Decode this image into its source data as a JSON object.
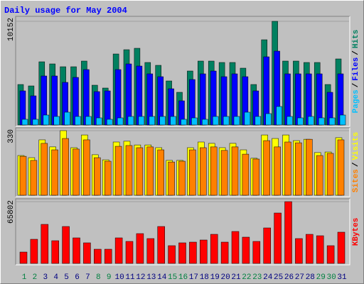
{
  "title": "Daily usage for May 2004",
  "legend_separator": "/",
  "chart_data": [
    {
      "type": "bar",
      "series": [
        {
          "name": "Hits",
          "color": "#008060",
          "values": [
            3963,
            3824,
            6188,
            5980,
            5702,
            5702,
            6258,
            3894,
            3616,
            6953,
            7371,
            7510,
            6119,
            5841,
            4311,
            3199,
            5285,
            6258,
            6258,
            6119,
            6119,
            5563,
            3963,
            8344,
            10152,
            6258,
            6258,
            6119,
            6119,
            3963,
            6467
          ]
        },
        {
          "name": "Files",
          "color": "#0000ff",
          "values": [
            3338,
            2851,
            4798,
            4798,
            4172,
            4659,
            5424,
            3268,
            3338,
            5424,
            5980,
            5771,
            5007,
            4728,
            3546,
            2364,
            4450,
            5007,
            5285,
            4728,
            5007,
            4728,
            3338,
            6675,
            7232,
            5007,
            5007,
            5007,
            5007,
            3199,
            5007
          ]
        },
        {
          "name": "Pages",
          "color": "#00c0ff",
          "values": [
            556,
            556,
            973,
            834,
            1251,
            834,
            834,
            695,
            556,
            695,
            834,
            834,
            834,
            834,
            834,
            556,
            695,
            556,
            834,
            834,
            834,
            1251,
            834,
            1112,
            1808,
            834,
            695,
            834,
            695,
            695,
            973
          ]
        }
      ],
      "ylim": [
        0,
        10152
      ],
      "yticks": [
        10152
      ]
    },
    {
      "type": "bar",
      "series": [
        {
          "name": "Visits",
          "color": "#ffff00",
          "values": [
            203,
            192,
            283,
            247,
            330,
            243,
            308,
            207,
            181,
            272,
            276,
            257,
            257,
            243,
            178,
            178,
            243,
            272,
            265,
            243,
            265,
            232,
            189,
            308,
            290,
            308,
            279,
            286,
            218,
            221,
            294
          ]
        },
        {
          "name": "Sites",
          "color": "#ff8000",
          "values": [
            199,
            178,
            265,
            232,
            290,
            236,
            283,
            192,
            174,
            250,
            254,
            243,
            247,
            232,
            170,
            174,
            232,
            243,
            247,
            229,
            247,
            210,
            185,
            279,
            247,
            272,
            268,
            286,
            203,
            214,
            283
          ]
        }
      ],
      "ylim": [
        0,
        330
      ],
      "yticks": [
        330
      ]
    },
    {
      "type": "bar",
      "series": [
        {
          "name": "KBytes",
          "color": "#ff0000",
          "values": [
            12101,
            25716,
            41600,
            24203,
            39331,
            27229,
            21934,
            15127,
            15127,
            27229,
            23446,
            31766,
            26473,
            39331,
            18909,
            21934,
            22690,
            24959,
            31010,
            22690,
            34036,
            27985,
            23446,
            37818,
            53701,
            65802,
            26473,
            31010,
            29498,
            18909,
            33280
          ]
        }
      ],
      "ylim": [
        0,
        65802
      ],
      "yticks": [
        65802
      ],
      "categories": [
        "1",
        "2",
        "3",
        "4",
        "5",
        "6",
        "7",
        "8",
        "9",
        "10",
        "11",
        "12",
        "13",
        "14",
        "15",
        "16",
        "17",
        "18",
        "19",
        "20",
        "21",
        "22",
        "23",
        "24",
        "25",
        "26",
        "27",
        "28",
        "29",
        "30",
        "31"
      ],
      "category_colors": [
        "#008040",
        "#008040",
        "#000080",
        "#000080",
        "#000080",
        "#000080",
        "#000080",
        "#008040",
        "#008040",
        "#000080",
        "#000080",
        "#000080",
        "#000080",
        "#000080",
        "#008040",
        "#008040",
        "#000080",
        "#000080",
        "#000080",
        "#000080",
        "#000080",
        "#008040",
        "#008040",
        "#000080",
        "#000080",
        "#000080",
        "#000080",
        "#000080",
        "#008040",
        "#008040",
        "#000080"
      ]
    }
  ]
}
